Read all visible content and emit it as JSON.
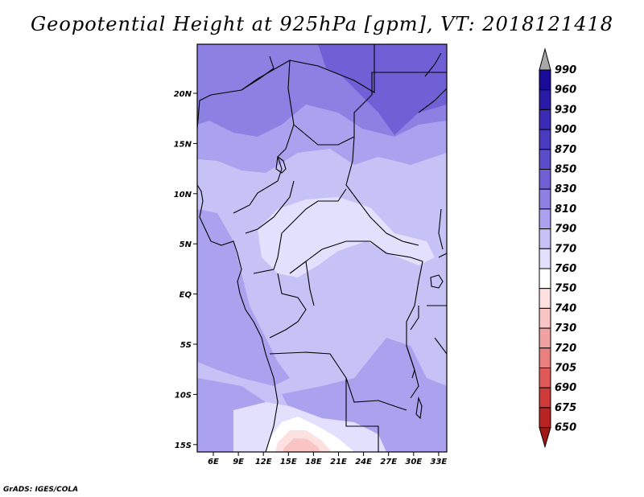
{
  "title": "Geopotential Height at 925hPa [gpm], VT: 2018121418",
  "credit": "GrADS: IGES/COLA",
  "lon_ticks": [
    "6E",
    "9E",
    "12E",
    "15E",
    "18E",
    "21E",
    "24E",
    "27E",
    "30E",
    "33E"
  ],
  "lat_ticks": [
    "20N",
    "15N",
    "10N",
    "5N",
    "EQ",
    "5S",
    "10S",
    "15S"
  ],
  "colorbar": {
    "levels": [
      "990",
      "960",
      "930",
      "900",
      "870",
      "850",
      "830",
      "810",
      "790",
      "770",
      "760",
      "750",
      "740",
      "730",
      "720",
      "705",
      "690",
      "675",
      "650"
    ],
    "colors": [
      "#1a0a9a",
      "#2a1aa8",
      "#3a2ab6",
      "#4a3ac0",
      "#5a4cca",
      "#7060d6",
      "#8c80e2",
      "#aaa2ee",
      "#c6c2f6",
      "#e2e0fc",
      "#ffffff",
      "#fde0e0",
      "#f8c4c4",
      "#f0a2a2",
      "#e88080",
      "#e05a5a",
      "#d03a3a",
      "#b82424",
      "#a01818"
    ],
    "top_arrow_color": "#a8a8a8",
    "bottom_arrow_color": "#a01818"
  },
  "field_colors": {
    "c850": "#7060d6",
    "c830": "#8c80e2",
    "c810": "#aaa2ee",
    "c790": "#c6c2f6",
    "c770": "#e2e0fc",
    "c760": "#ffffff",
    "c750": "#fde0e0",
    "c740": "#f8c4c4"
  }
}
